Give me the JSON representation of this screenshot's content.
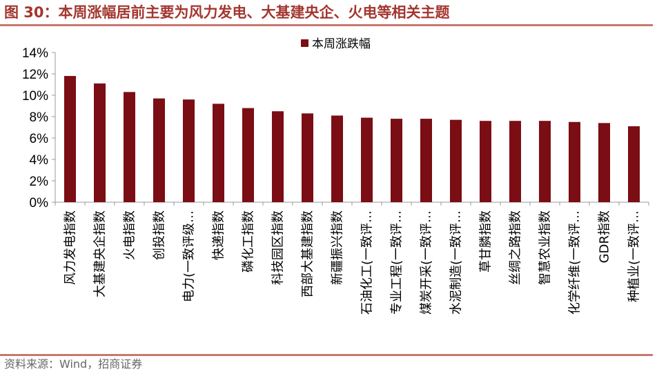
{
  "figure": {
    "title": "图 30：本周涨幅居前主要为风力发电、大基建央企、火电等相关主题",
    "source": "资料来源：Wind，招商证券"
  },
  "chart_data": {
    "type": "bar",
    "categories": [
      "风力发电指数",
      "大基建央企指数",
      "火电指数",
      "创投指数",
      "电力(一致评级…",
      "快递指数",
      "磷化工指数",
      "科技园区指数",
      "西部大基建指数",
      "新疆振兴指数",
      "石油化工(一致评…",
      "专业工程(一致评…",
      "煤炭开采(一致评…",
      "水泥制造(一致评…",
      "草甘膦指数",
      "丝绸之路指数",
      "智慧农业指数",
      "化学纤维(一致评…",
      "GDR指数",
      "种植业(一致评…"
    ],
    "series": [
      {
        "name": "本周涨跌幅",
        "values": [
          11.8,
          11.1,
          10.3,
          9.7,
          9.6,
          9.2,
          8.8,
          8.5,
          8.3,
          8.1,
          7.9,
          7.8,
          7.8,
          7.7,
          7.6,
          7.6,
          7.6,
          7.5,
          7.4,
          7.1
        ]
      }
    ],
    "ylim": [
      0,
      14
    ],
    "yticks": [
      "0%",
      "2%",
      "4%",
      "6%",
      "8%",
      "10%",
      "12%",
      "14%"
    ],
    "ytick_values": [
      0,
      2,
      4,
      6,
      8,
      10,
      12,
      14
    ],
    "grid": false,
    "legend_position": "top-center",
    "colors": {
      "bar": "#7b0d14",
      "axis": "#999999",
      "text": "#000000"
    }
  }
}
